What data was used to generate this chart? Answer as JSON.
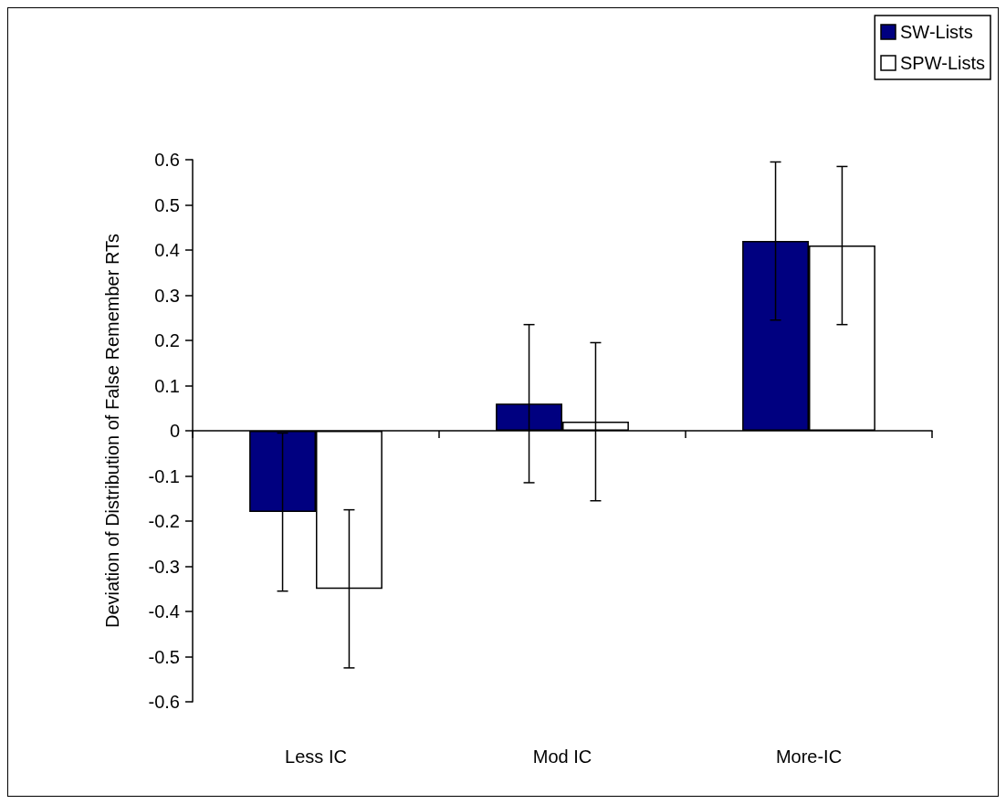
{
  "chart_data": {
    "type": "bar",
    "ylabel": "Deviation of Distribution of False Remember RTs",
    "categories": [
      "Less IC",
      "Mod IC",
      "More-IC"
    ],
    "series": [
      {
        "name": "SW-Lists",
        "color": "#000080",
        "values": [
          -0.18,
          0.06,
          0.42
        ],
        "errors": [
          0.175,
          0.175,
          0.175
        ]
      },
      {
        "name": "SPW-Lists",
        "color": "#ffffff",
        "values": [
          -0.35,
          0.02,
          0.41
        ],
        "errors": [
          0.175,
          0.175,
          0.175
        ]
      }
    ],
    "ylim": [
      -0.6,
      0.6
    ],
    "yticks": [
      -0.6,
      -0.5,
      -0.4,
      -0.3,
      -0.2,
      -0.1,
      0,
      0.1,
      0.2,
      0.3,
      0.4,
      0.5,
      0.6
    ],
    "legend": "top right"
  }
}
